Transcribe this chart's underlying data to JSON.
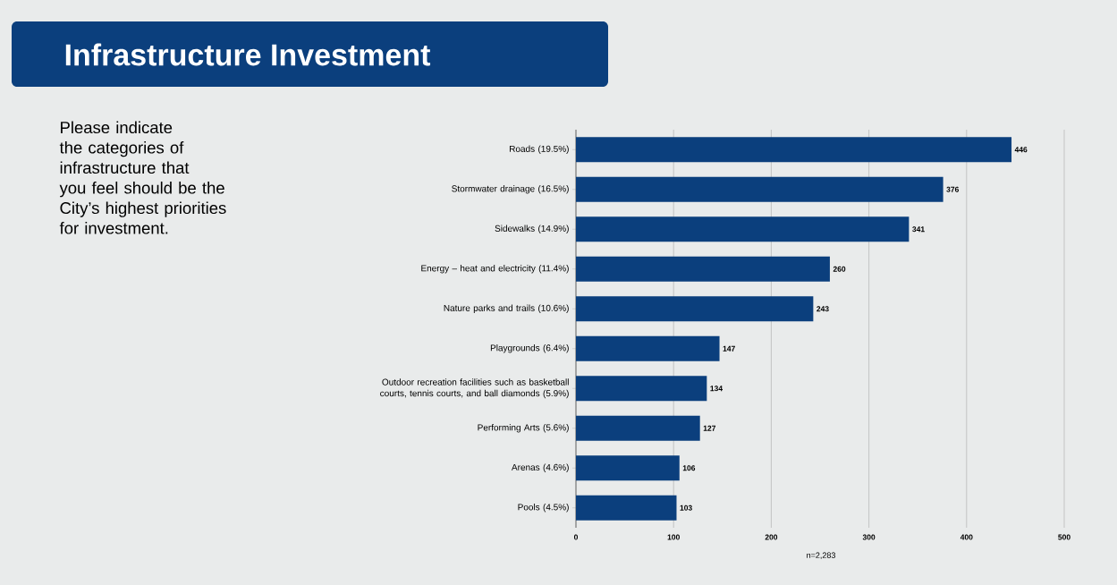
{
  "chart_data": {
    "type": "bar",
    "orientation": "horizontal",
    "title": "Infrastructure Investment",
    "subtitle": "Please indicate the categories of infrastructure that you feel should be the City’s highest priorities for investment.",
    "categories": [
      "Roads (19.5%)",
      "Stormwater drainage (16.5%)",
      "Sidewalks (14.9%)",
      "Energy – heat and electricity (11.4%)",
      "Nature parks and trails (10.6%)",
      "Playgrounds (6.4%)",
      "Outdoor recreation facilities such as basketball courts, tennis courts, and ball diamonds (5.9%)",
      "Performing Arts (5.6%)",
      "Arenas (4.6%)",
      "Pools (4.5%)"
    ],
    "values": [
      446,
      376,
      341,
      260,
      243,
      147,
      134,
      127,
      106,
      103
    ],
    "color": "#0b3f7d",
    "xlim": [
      0,
      500
    ],
    "xticks": [
      0,
      100,
      200,
      300,
      400,
      500
    ],
    "grid": "x",
    "data_labels": true,
    "annotations": [
      "n=2,283"
    ]
  }
}
